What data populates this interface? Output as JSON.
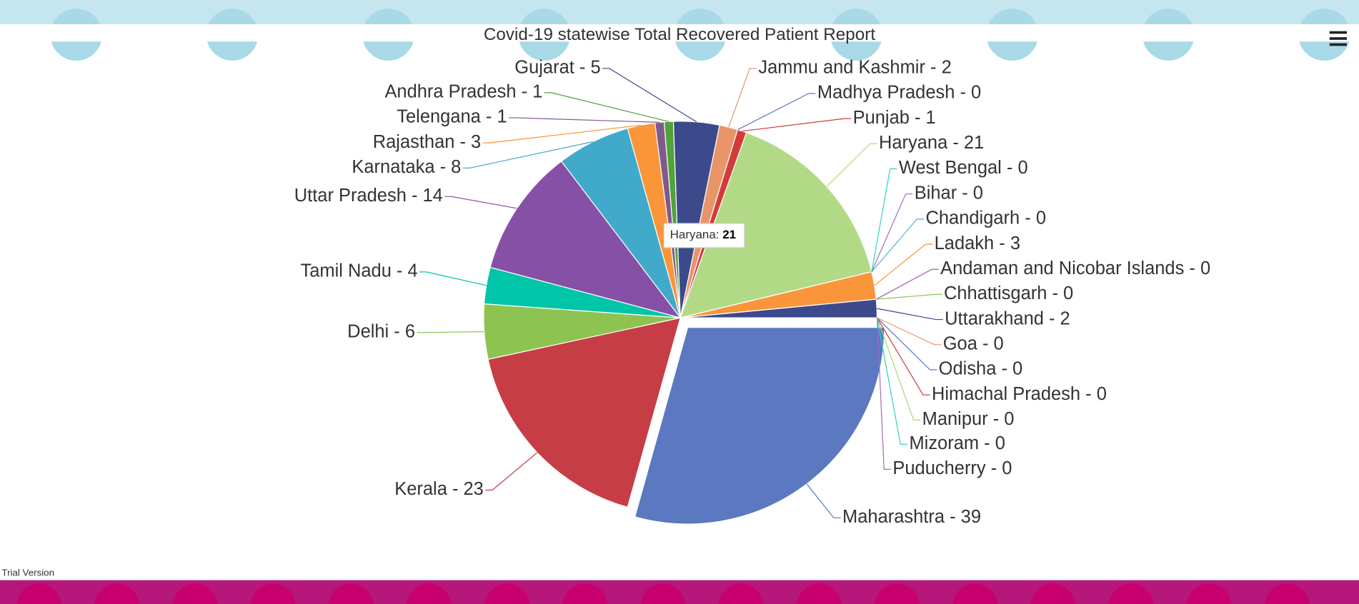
{
  "chart_data": {
    "type": "pie",
    "title": "Covid-19 statewise Total Recovered Patient Report",
    "categories": [
      "Maharashtra",
      "Kerala",
      "Delhi",
      "Tamil Nadu",
      "Uttar Pradesh",
      "Karnataka",
      "Rajasthan",
      "Telengana",
      "Andhra Pradesh",
      "Gujarat",
      "Jammu and Kashmir",
      "Madhya Pradesh",
      "Punjab",
      "Haryana",
      "West Bengal",
      "Bihar",
      "Chandigarh",
      "Ladakh",
      "Andaman and Nicobar Islands",
      "Chhattisgarh",
      "Uttarakhand",
      "Goa",
      "Odisha",
      "Himachal Pradesh",
      "Manipur",
      "Mizoram",
      "Puducherry"
    ],
    "values": [
      39,
      23,
      6,
      4,
      14,
      8,
      3,
      1,
      1,
      5,
      2,
      0,
      1,
      21,
      0,
      0,
      0,
      3,
      0,
      0,
      2,
      0,
      0,
      0,
      0,
      0,
      0
    ],
    "value_labels": [
      "Maharashtra - 39",
      "Kerala - 23",
      "Delhi - 6",
      "Tamil Nadu - 4",
      "Uttar Pradesh - 14",
      "Karnataka - 8",
      "Rajasthan - 3",
      "Telengana - 1",
      "Andhra Pradesh - 1",
      "Gujarat - 5",
      "Jammu and Kashmir - 2",
      "Madhya Pradesh - 0",
      "Punjab - 1",
      "Haryana - 21",
      "West Bengal - 0",
      "Bihar - 0",
      "Chandigarh - 0",
      "Ladakh - 3",
      "Andaman and Nicobar Islands - 0",
      "Chhattisgarh - 0",
      "Uttarakhand - 2",
      "Goa - 0",
      "Odisha - 0",
      "Himachal Pradesh - 0",
      "Manipur - 0",
      "Mizoram - 0",
      "Puducherry - 0"
    ],
    "colors": [
      "#5b78c0",
      "#c63d45",
      "#8dc451",
      "#00c5a8",
      "#8650a6",
      "#41aacb",
      "#fa953a",
      "#7f5a8a",
      "#50a23a",
      "#3c4a8c",
      "#e8956a",
      "#5b78c0",
      "#d33b3b",
      "#b2da86",
      "#2fd5c0",
      "#a36cc0",
      "#4fb6d8",
      "#fa953a",
      "#9c60a8",
      "#8dc451",
      "#3c4a8c",
      "#f39a6a",
      "#5b78c0",
      "#d33b3b",
      "#a8d873",
      "#2ed1b8",
      "#a36cc0"
    ],
    "tooltip": {
      "label": "Haryana:",
      "value": 21
    }
  },
  "footer": {
    "watermark": "Trial Version"
  }
}
